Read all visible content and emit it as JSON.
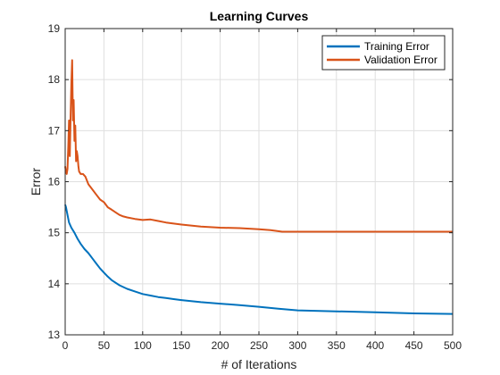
{
  "chart_data": {
    "type": "line",
    "title": "Learning Curves",
    "xlabel": "# of Iterations",
    "ylabel": "Error",
    "xlim": [
      0,
      500
    ],
    "ylim": [
      13,
      19
    ],
    "xticks": [
      0,
      50,
      100,
      150,
      200,
      250,
      300,
      350,
      400,
      450,
      500
    ],
    "yticks": [
      13,
      14,
      15,
      16,
      17,
      18,
      19
    ],
    "grid": true,
    "legend_position": "top-right",
    "series": [
      {
        "name": "Training Error",
        "color": "#0072BD",
        "x": [
          0,
          1,
          3,
          5,
          8,
          12,
          16,
          20,
          25,
          30,
          35,
          40,
          45,
          50,
          55,
          60,
          70,
          80,
          90,
          100,
          110,
          120,
          130,
          140,
          150,
          175,
          200,
          225,
          250,
          275,
          300,
          350,
          400,
          450,
          500
        ],
        "y": [
          15.55,
          15.5,
          15.35,
          15.2,
          15.1,
          15.0,
          14.88,
          14.78,
          14.68,
          14.6,
          14.5,
          14.4,
          14.3,
          14.22,
          14.14,
          14.07,
          13.97,
          13.9,
          13.85,
          13.8,
          13.77,
          13.74,
          13.72,
          13.7,
          13.68,
          13.64,
          13.61,
          13.58,
          13.55,
          13.51,
          13.48,
          13.46,
          13.44,
          13.42,
          13.41
        ]
      },
      {
        "name": "Validation Error",
        "color": "#D95319",
        "x": [
          0,
          1,
          2,
          3,
          4,
          5,
          6,
          7,
          8,
          9,
          10,
          11,
          12,
          13,
          14,
          15,
          16,
          17,
          18,
          20,
          23,
          26,
          30,
          35,
          40,
          45,
          50,
          55,
          60,
          65,
          70,
          75,
          80,
          90,
          100,
          110,
          120,
          130,
          140,
          150,
          175,
          200,
          225,
          250,
          265,
          280,
          300,
          350,
          400,
          450,
          500
        ],
        "y": [
          16.3,
          16.2,
          16.15,
          16.25,
          16.7,
          17.2,
          16.5,
          17.3,
          17.9,
          18.38,
          17.2,
          17.6,
          16.8,
          17.1,
          16.4,
          16.6,
          16.5,
          16.3,
          16.2,
          16.15,
          16.15,
          16.1,
          15.95,
          15.85,
          15.75,
          15.65,
          15.6,
          15.5,
          15.45,
          15.4,
          15.35,
          15.32,
          15.3,
          15.27,
          15.25,
          15.26,
          15.23,
          15.2,
          15.18,
          15.16,
          15.12,
          15.1,
          15.09,
          15.07,
          15.05,
          15.02,
          15.02,
          15.02,
          15.02,
          15.02,
          15.02
        ]
      }
    ]
  }
}
